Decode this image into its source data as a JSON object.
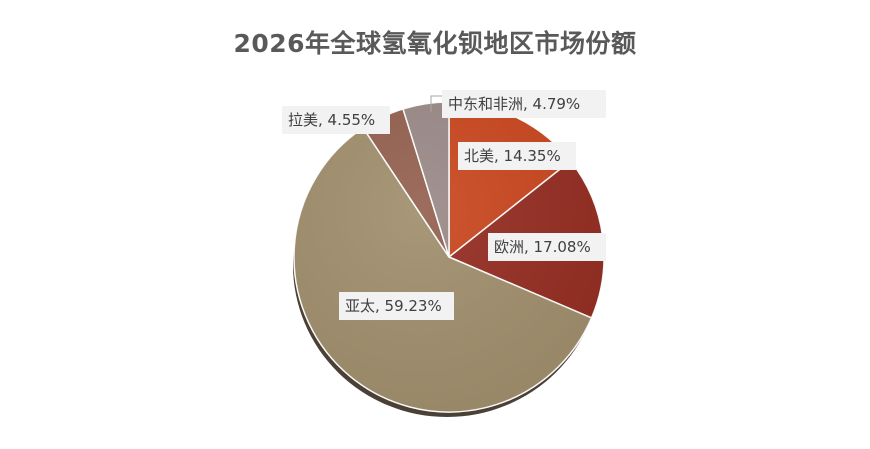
{
  "chart_data": {
    "type": "pie",
    "title": "2026年全球氢氧化钡地区市场份额",
    "slices": [
      {
        "name": "北美",
        "value": 14.35,
        "label": "北美, 14.35%",
        "color": "#C9471E"
      },
      {
        "name": "欧洲",
        "value": 17.08,
        "label": "欧洲, 17.08%",
        "color": "#952D22"
      },
      {
        "name": "亚太",
        "value": 59.23,
        "label": "亚太, 59.23%",
        "color": "#A08F6D"
      },
      {
        "name": "拉美",
        "value": 4.55,
        "label": "拉美, 4.55%",
        "color": "#94604F"
      },
      {
        "name": "中东和非洲",
        "value": 4.79,
        "label": "中东和非洲, 4.79%",
        "color": "#9A8A88"
      }
    ],
    "legend": "none",
    "start_angle": "12 o'clock",
    "direction": "clockwise"
  }
}
